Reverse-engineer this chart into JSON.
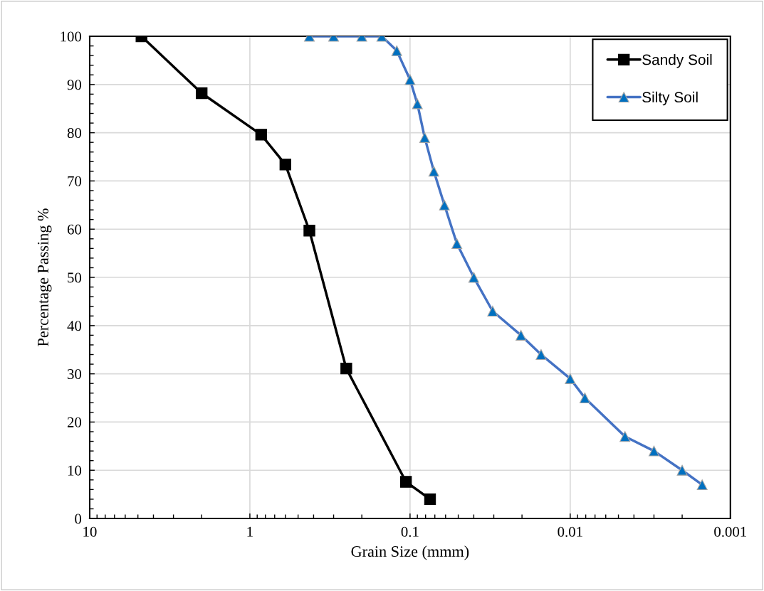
{
  "chart_data": {
    "type": "line",
    "xlabel": "Grain Size (mmm)",
    "ylabel": "Percentage Passing %",
    "log": "x",
    "xlim": [
      10,
      0.001
    ],
    "xticks": [
      10,
      1,
      0.1,
      0.01,
      0.001
    ],
    "ylim": [
      0,
      100
    ],
    "yticks": [
      0,
      10,
      20,
      30,
      40,
      50,
      60,
      70,
      80,
      90,
      100
    ],
    "grid": true,
    "legend": "top right",
    "line_style": "solid",
    "series": [
      {
        "name": "Sandy Soil",
        "color": "#000000",
        "marker": "square",
        "x": [
          4.75,
          2.0,
          0.85,
          0.6,
          0.425,
          0.25,
          0.106,
          0.075
        ],
        "values": [
          100,
          88.2,
          79.6,
          73.4,
          59.7,
          31.1,
          7.6,
          4.0
        ]
      },
      {
        "name": "Silty Soil",
        "color": "#4472c4",
        "marker": "triangle",
        "x": [
          0.425,
          0.3,
          0.2,
          0.15,
          0.121,
          0.1,
          0.09,
          0.081,
          0.071,
          0.061,
          0.051,
          0.04,
          0.0305,
          0.0203,
          0.0152,
          0.01,
          0.0081,
          0.00455,
          0.003,
          0.002,
          0.0015
        ],
        "values": [
          100,
          100,
          100,
          100,
          97,
          91,
          86,
          79,
          72,
          65,
          57,
          50,
          43,
          38,
          34,
          29,
          25,
          17,
          14,
          10,
          7
        ]
      }
    ]
  }
}
